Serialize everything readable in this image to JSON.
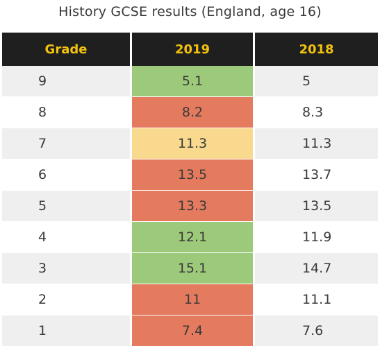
{
  "chart_data": {
    "type": "table",
    "title": "History GCSE results (England, age 16)",
    "columns": [
      "Grade",
      "2019",
      "2018"
    ],
    "rows": [
      {
        "grade": "9",
        "y2019": "5.1",
        "y2018": "5",
        "status": "better"
      },
      {
        "grade": "8",
        "y2019": "8.2",
        "y2018": "8.3",
        "status": "worse"
      },
      {
        "grade": "7",
        "y2019": "11.3",
        "y2018": "11.3",
        "status": "same"
      },
      {
        "grade": "6",
        "y2019": "13.5",
        "y2018": "13.7",
        "status": "worse"
      },
      {
        "grade": "5",
        "y2019": "13.3",
        "y2018": "13.5",
        "status": "worse"
      },
      {
        "grade": "4",
        "y2019": "12.1",
        "y2018": "11.9",
        "status": "better"
      },
      {
        "grade": "3",
        "y2019": "15.1",
        "y2018": "14.7",
        "status": "better"
      },
      {
        "grade": "2",
        "y2019": "11",
        "y2018": "11.1",
        "status": "worse"
      },
      {
        "grade": "1",
        "y2019": "7.4",
        "y2018": "7.6",
        "status": "worse"
      }
    ]
  },
  "colors": {
    "better": "#9dc97a",
    "worse": "#e47b5f",
    "same": "#f8d98e",
    "header_bg": "#1f1f1f",
    "header_text": "#f2c20e"
  }
}
